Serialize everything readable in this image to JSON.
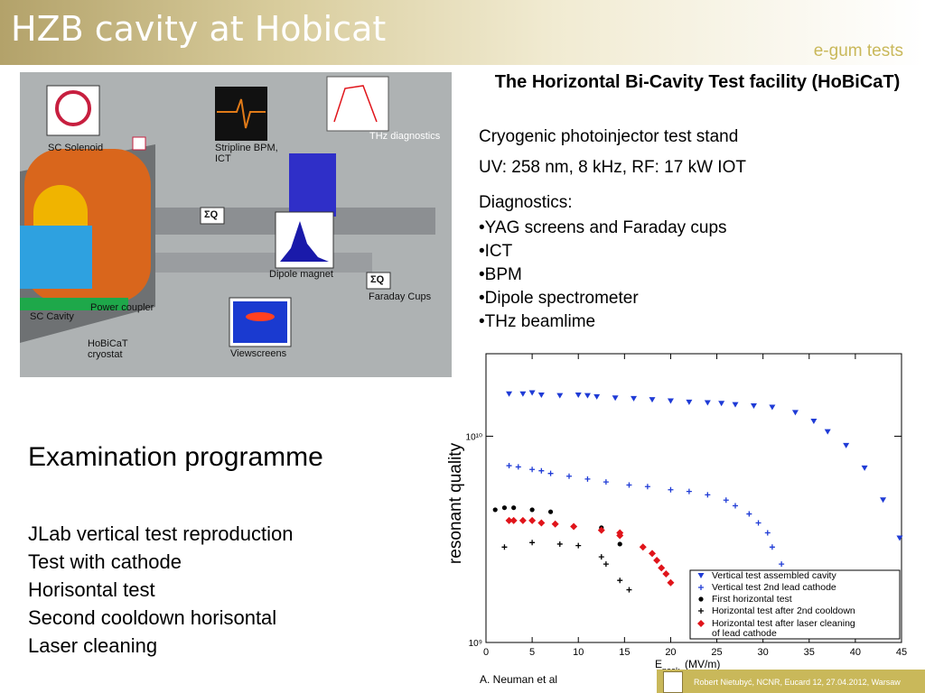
{
  "header": {
    "title": "HZB cavity at Hobicat",
    "subtitle": "e-gum tests",
    "bg_color": "#c9b85a"
  },
  "figure": {
    "labels": {
      "sc_solenoid": "SC Solenoid",
      "stripline": "Stripline BPM,\nICT",
      "thz": "THz diagnostics",
      "dipole": "Dipole magnet",
      "faraday": "Faraday Cups",
      "sc_cavity": "SC Cavity",
      "power_coupler": "Power coupler",
      "hobicat": "HoBiCaT\ncryostat",
      "viewscreens": "Viewscreens",
      "sigma_q": "ΣQ"
    }
  },
  "facility": {
    "title": "The Horizontal Bi-Cavity Test facility (HoBiCaT)",
    "line1": "Cryogenic photoinjector test stand",
    "line2": "UV: 258 nm, 8 kHz, RF: 17 kW IOT",
    "diag_title": "Diagnostics:",
    "diagnostics": [
      "•YAG screens and Faraday cups",
      "•ICT",
      "•BPM",
      "•Dipole spectrometer",
      "•THz beamlime"
    ]
  },
  "exam": {
    "heading": "Examination programme",
    "items": [
      "JLab vertical test reproduction",
      "Test with cathode",
      "Horisontal test",
      "Second cooldown horisontal",
      "Laser cleaning"
    ]
  },
  "chart_data": {
    "type": "scatter",
    "ylabel": "resonant quality",
    "xlabel_main": "E",
    "xlabel_sub": "peak",
    "xlabel_unit": "(MV/m)",
    "xlim": [
      0,
      45
    ],
    "ylim_log10": [
      9,
      10.4
    ],
    "y_tick_labels": [
      "10¹⁰",
      "10⁹"
    ],
    "x_ticks": [
      0,
      5,
      10,
      15,
      20,
      25,
      30,
      35,
      40,
      45
    ],
    "series": [
      {
        "name": "Vertical test assembled cavity",
        "marker": "triangle",
        "color": "#1f3bd6",
        "x": [
          2.5,
          4,
          5,
          6,
          8,
          10,
          11,
          12,
          14,
          16,
          18,
          20,
          22,
          24,
          25.5,
          27,
          29,
          31,
          33.5,
          35.5,
          37,
          39,
          41,
          43,
          44.8
        ],
        "y": [
          16000000000.0,
          16000000000.0,
          16200000000.0,
          15800000000.0,
          15700000000.0,
          15800000000.0,
          15700000000.0,
          15500000000.0,
          15300000000.0,
          15200000000.0,
          15000000000.0,
          14800000000.0,
          14600000000.0,
          14500000000.0,
          14400000000.0,
          14200000000.0,
          14000000000.0,
          13800000000.0,
          13000000000.0,
          11800000000.0,
          10500000000.0,
          9000000000.0,
          7000000000.0,
          4900000000.0,
          3200000000.0
        ]
      },
      {
        "name": "Vertical test 2nd lead cathode",
        "marker": "plus",
        "color": "#1f3bd6",
        "x": [
          2.5,
          3.5,
          5,
          6,
          7,
          9,
          11,
          13,
          15.5,
          17.5,
          20,
          22,
          24,
          26,
          27,
          28.5,
          29.5,
          30.5,
          31,
          32
        ],
        "y": [
          7200000000.0,
          7100000000.0,
          6900000000.0,
          6800000000.0,
          6600000000.0,
          6400000000.0,
          6200000000.0,
          6000000000.0,
          5800000000.0,
          5700000000.0,
          5500000000.0,
          5400000000.0,
          5200000000.0,
          4900000000.0,
          4600000000.0,
          4200000000.0,
          3800000000.0,
          3400000000.0,
          2900000000.0,
          2400000000.0
        ]
      },
      {
        "name": "First horizontal test",
        "marker": "circle",
        "color": "#000000",
        "x": [
          1,
          2,
          3,
          5,
          7,
          12.5,
          14.5,
          14.5
        ],
        "y": [
          4400000000.0,
          4500000000.0,
          4500000000.0,
          4400000000.0,
          4300000000.0,
          3600000000.0,
          3300000000.0,
          3000000000.0
        ]
      },
      {
        "name": "Horizontal test after 2nd cooldown",
        "marker": "plus",
        "color": "#000000",
        "x": [
          2,
          5,
          8,
          10,
          12.5,
          13,
          14.5,
          15.5
        ],
        "y": [
          2900000000.0,
          3050000000.0,
          3000000000.0,
          2950000000.0,
          2600000000.0,
          2400000000.0,
          2000000000.0,
          1800000000.0
        ]
      },
      {
        "name": "Horizontal test after laser cleaning of lead cathode",
        "marker": "diamond",
        "color": "#e0141a",
        "x": [
          2.5,
          3,
          4,
          5,
          6,
          7.5,
          9.5,
          12.5,
          14.5,
          14.5,
          17,
          18,
          18.5,
          19,
          19.5,
          20
        ],
        "y": [
          3900000000.0,
          3900000000.0,
          3900000000.0,
          3900000000.0,
          3800000000.0,
          3750000000.0,
          3650000000.0,
          3500000000.0,
          3400000000.0,
          3300000000.0,
          2900000000.0,
          2700000000.0,
          2500000000.0,
          2300000000.0,
          2150000000.0,
          1950000000.0
        ]
      }
    ]
  },
  "credit": "A. Neuman et al",
  "footer": {
    "text": "Robert Nietubyć, NCNR,  Eucard 12, 27.04.2012, Warsaw"
  }
}
